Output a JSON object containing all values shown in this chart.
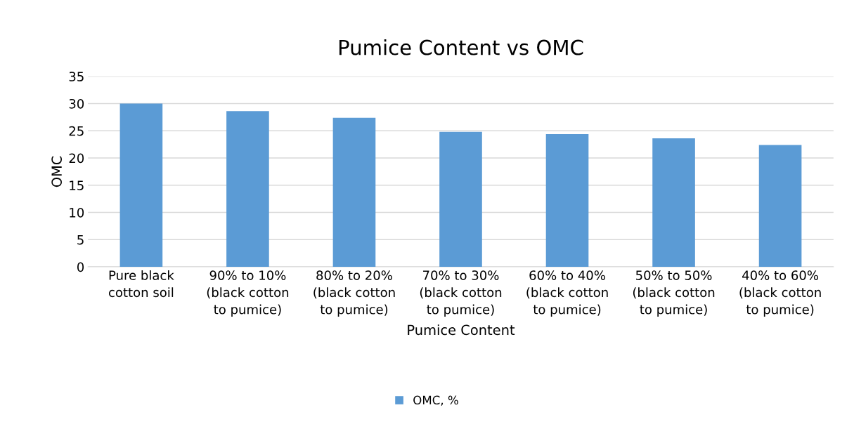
{
  "chart_data": {
    "type": "bar",
    "title": "Pumice Content vs OMC",
    "xlabel": "Pumice Content",
    "ylabel": "OMC",
    "categories": [
      "Pure black\ncotton soil",
      "90% to 10%\n(black cotton\nto pumice)",
      "80% to 20%\n(black cotton\nto pumice)",
      "70% to 30%\n(black cotton\nto pumice)",
      "60% to 40%\n(black cotton\nto pumice)",
      "50% to 50%\n(black cotton\nto pumice)",
      "40% to 60%\n(black cotton\nto pumice)"
    ],
    "series": [
      {
        "name": "OMC, %",
        "color": "#5b9bd5",
        "values": [
          30,
          28.6,
          27.4,
          24.8,
          24.4,
          23.6,
          22.4
        ]
      }
    ],
    "ylim": [
      0,
      35
    ],
    "yticks": [
      0,
      5,
      10,
      15,
      20,
      25,
      30,
      35
    ],
    "grid": "y",
    "legend": "bottom"
  }
}
